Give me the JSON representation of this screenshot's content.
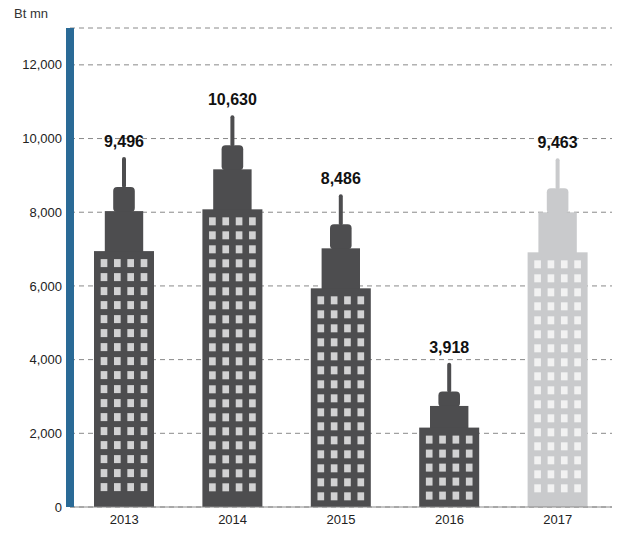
{
  "chart_data": {
    "type": "bar",
    "y_label": "Bt mn",
    "categories": [
      "2013",
      "2014",
      "2015",
      "2016",
      "2017"
    ],
    "values": [
      9496,
      10630,
      8486,
      3918,
      9463
    ],
    "value_labels": [
      "9,496",
      "10,630",
      "8,486",
      "3,918",
      "9,463"
    ],
    "colors": [
      "#4d4d4f",
      "#4d4d4f",
      "#4d4d4f",
      "#4d4d4f",
      "#c9cacc"
    ],
    "ylim": [
      0,
      13000
    ],
    "yticks": [
      0,
      {
        "value": 2000,
        "label": "2,000"
      },
      {
        "value": 4000,
        "label": "4,000"
      },
      {
        "value": 6000,
        "label": "6,000"
      },
      {
        "value": 8000,
        "label": "8,000"
      },
      {
        "value": 10000,
        "label": "10,000"
      },
      {
        "value": 12000,
        "label": "12,000"
      }
    ],
    "grid": true,
    "data_labels": true
  }
}
